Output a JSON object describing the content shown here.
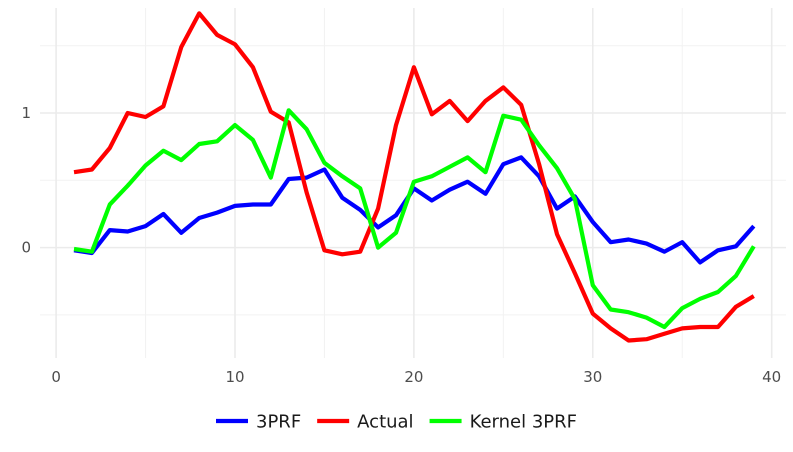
{
  "chart_data": {
    "type": "line",
    "title": "",
    "xlabel": "",
    "ylabel": "",
    "xlim": [
      -0.9,
      40.8
    ],
    "ylim": [
      -0.82,
      1.78
    ],
    "x_ticks": [
      0,
      10,
      20,
      30,
      40
    ],
    "y_ticks": [
      0,
      1
    ],
    "grid": true,
    "legend_position": "bottom",
    "x": [
      1,
      2,
      3,
      4,
      5,
      6,
      7,
      8,
      9,
      10,
      11,
      12,
      13,
      14,
      15,
      16,
      17,
      18,
      19,
      20,
      21,
      22,
      23,
      24,
      25,
      26,
      27,
      28,
      29,
      30,
      31,
      32,
      33,
      34,
      35,
      36,
      37,
      38,
      39
    ],
    "series": [
      {
        "name": "3PRF",
        "color": "#0000ff",
        "values": [
          -0.02,
          -0.04,
          0.13,
          0.12,
          0.16,
          0.25,
          0.11,
          0.22,
          0.26,
          0.31,
          0.32,
          0.32,
          0.51,
          0.52,
          0.58,
          0.37,
          0.28,
          0.15,
          0.24,
          0.44,
          0.35,
          0.43,
          0.49,
          0.4,
          0.62,
          0.67,
          0.53,
          0.29,
          0.38,
          0.19,
          0.04,
          0.06,
          0.03,
          -0.03,
          0.04,
          -0.11,
          -0.02,
          0.01,
          0.16
        ]
      },
      {
        "name": "Actual",
        "color": "#ff0000",
        "values": [
          0.56,
          0.58,
          0.74,
          1.0,
          0.97,
          1.05,
          1.49,
          1.74,
          1.58,
          1.51,
          1.34,
          1.01,
          0.93,
          0.41,
          -0.02,
          -0.05,
          -0.03,
          0.29,
          0.91,
          1.34,
          0.99,
          1.09,
          0.94,
          1.09,
          1.19,
          1.06,
          0.62,
          0.1,
          -0.19,
          -0.49,
          -0.6,
          -0.69,
          -0.68,
          -0.64,
          -0.6,
          -0.59,
          -0.59,
          -0.44,
          -0.36
        ]
      },
      {
        "name": "Kernel 3PRF",
        "color": "#00ff00",
        "values": [
          -0.01,
          -0.03,
          0.32,
          0.46,
          0.61,
          0.72,
          0.65,
          0.77,
          0.79,
          0.91,
          0.8,
          0.52,
          1.02,
          0.88,
          0.63,
          0.53,
          0.44,
          0.0,
          0.11,
          0.49,
          0.53,
          0.6,
          0.67,
          0.56,
          0.98,
          0.95,
          0.76,
          0.59,
          0.36,
          -0.28,
          -0.46,
          -0.48,
          -0.52,
          -0.59,
          -0.45,
          -0.38,
          -0.33,
          -0.21,
          0.01
        ]
      }
    ]
  }
}
